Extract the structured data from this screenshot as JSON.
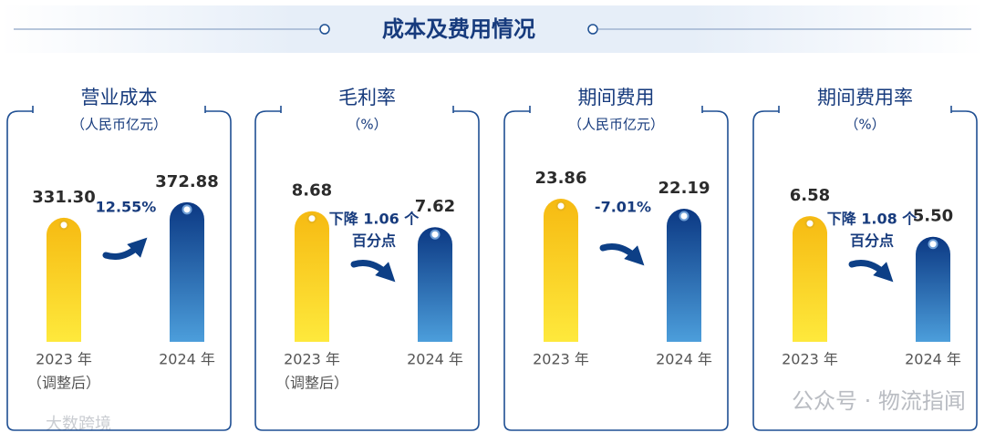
{
  "title": "成本及费用情况",
  "chart_data": [
    {
      "type": "bar",
      "title": "营业成本",
      "subtitle": "（人民币亿元）",
      "categories": [
        "2023 年",
        "2024 年"
      ],
      "category_note": "（调整后）",
      "values": [
        331.3,
        372.88
      ],
      "value_labels": [
        "331.30",
        "372.88"
      ],
      "ylim": [
        0,
        426
      ],
      "annotation": [
        "12.55%"
      ],
      "colors": [
        [
          "#f6ba12",
          "#fee93c"
        ],
        [
          "#0b3883",
          "#4c9edb"
        ]
      ]
    },
    {
      "type": "bar",
      "title": "毛利率",
      "subtitle": "（%）",
      "categories": [
        "2023 年",
        "2024 年"
      ],
      "category_note": "（调整后）",
      "values": [
        8.68,
        7.62
      ],
      "value_labels": [
        "8.68",
        "7.62"
      ],
      "ylim": [
        0,
        10.6
      ],
      "annotation": [
        "下降 1.06 个",
        "百分点"
      ],
      "colors": [
        [
          "#f6ba12",
          "#fee93c"
        ],
        [
          "#0b3883",
          "#4c9edb"
        ]
      ]
    },
    {
      "type": "bar",
      "title": "期间费用",
      "subtitle": "（人民币亿元）",
      "categories": [
        "2023 年",
        "2024 年"
      ],
      "values": [
        23.86,
        22.19
      ],
      "value_labels": [
        "23.86",
        "22.19"
      ],
      "ylim": [
        0,
        26.6
      ],
      "annotation": [
        "-7.01%"
      ],
      "colors": [
        [
          "#f6ba12",
          "#fee93c"
        ],
        [
          "#0b3883",
          "#4c9edb"
        ]
      ]
    },
    {
      "type": "bar",
      "title": "期间费用率",
      "subtitle": "（%）",
      "categories": [
        "2023 年",
        "2024 年"
      ],
      "values": [
        6.58,
        5.5
      ],
      "value_labels": [
        "6.58",
        "5.50"
      ],
      "ylim": [
        0,
        8.35
      ],
      "annotation": [
        "下降 1.08 个",
        "百分点"
      ],
      "colors": [
        [
          "#f6ba12",
          "#fee93c"
        ],
        [
          "#0b3883",
          "#4c9edb"
        ]
      ]
    }
  ],
  "watermarks": [
    "公众号 · 物流指闻",
    "大数跨境"
  ]
}
